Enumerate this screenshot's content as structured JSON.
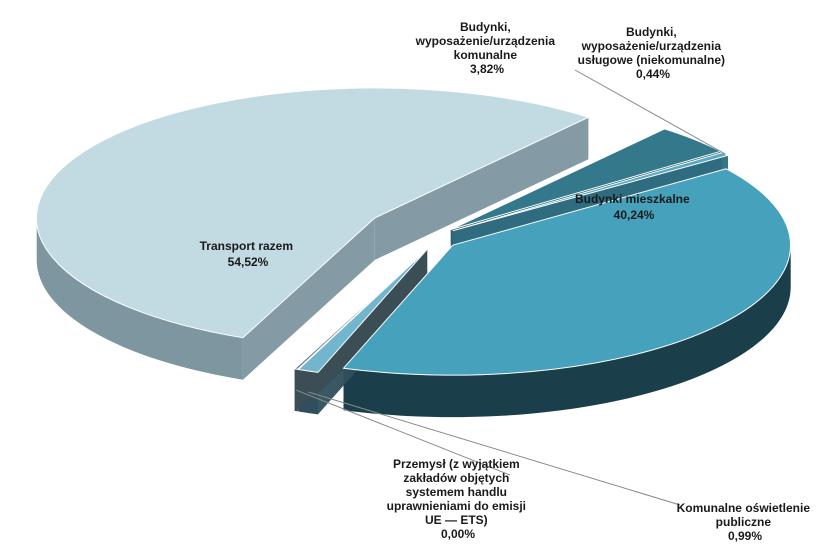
{
  "chart_data": {
    "type": "pie",
    "title": "",
    "slices": [
      {
        "label": "Budynki mieszkalne",
        "value": 40.24,
        "display": "40,24%",
        "color": "#45a1bc",
        "side": "#1b3f4a"
      },
      {
        "label": "Komunalne  oświetlenie publiczne",
        "value": 0.99,
        "display": "0,99%",
        "color": "#72b6cd",
        "side": "#2f4f5c"
      },
      {
        "label": "Przemysł (z wyjątkiem zakładów objętych systemem handlu uprawnieniami do emisji UE — ETS)",
        "value": 0.0,
        "display": "0,00%",
        "color": "#5a7480",
        "side": "#3b4d55"
      },
      {
        "label": "Transport razem",
        "value": 54.52,
        "display": "54,52%",
        "color": "#c2dae2",
        "side": "#7d96a0"
      },
      {
        "label": "Budynki, wyposażenie/urządzenia komunalne",
        "value": 3.82,
        "display": "3,82%",
        "color": "#33788b",
        "side": "#28606f"
      },
      {
        "label": "Budynki, wyposażenie/urządzenia usługowe (niekomunalne)",
        "value": 0.44,
        "display": "0,44%",
        "color": "#58a9c4",
        "side": "#2f6d80"
      }
    ]
  }
}
